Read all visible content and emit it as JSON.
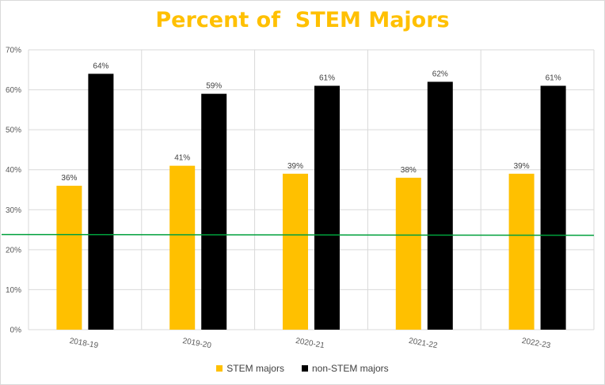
{
  "chart_data": {
    "type": "bar",
    "title": "Percent of  STEM Majors",
    "title_color": "#FFC000",
    "categories": [
      "2018-19",
      "2019-20",
      "2020-21",
      "2021-22",
      "2022-23"
    ],
    "series": [
      {
        "name": "STEM majors",
        "color": "#FFC000",
        "values": [
          36,
          41,
          39,
          38,
          39
        ],
        "labels": [
          "36%",
          "41%",
          "39%",
          "38%",
          "39%"
        ]
      },
      {
        "name": "non-STEM majors",
        "color": "#000000",
        "values": [
          64,
          59,
          61,
          62,
          61
        ],
        "labels": [
          "64%",
          "59%",
          "61%",
          "62%",
          "61%"
        ]
      }
    ],
    "ylim": [
      0,
      70
    ],
    "yticks": [
      0,
      10,
      20,
      30,
      40,
      50,
      60,
      70
    ],
    "ytick_labels": [
      "0%",
      "10%",
      "20%",
      "30%",
      "40%",
      "50%",
      "60%",
      "70%"
    ],
    "grid": true,
    "reference_line": {
      "y": 23.8,
      "color": "#00A03C"
    },
    "legend_position": "bottom",
    "xlabel": "",
    "ylabel": ""
  }
}
